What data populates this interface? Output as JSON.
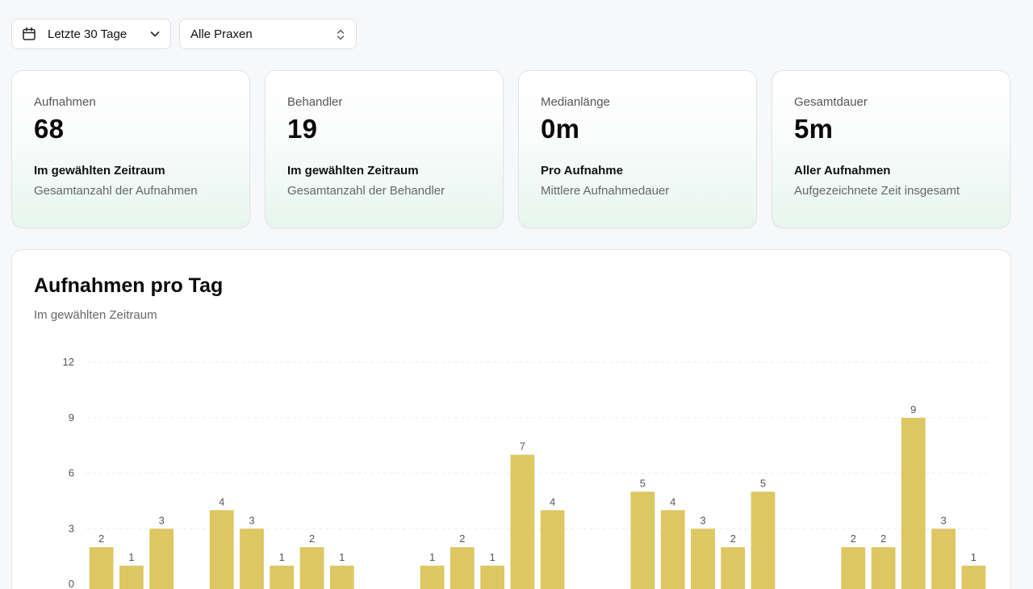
{
  "filters": {
    "range": {
      "label": "Letzte 30 Tage",
      "icon": "calendar-icon"
    },
    "praxis": {
      "label": "Alle Praxen",
      "icon": "chevron-up-down-icon"
    }
  },
  "cards": [
    {
      "title": "Aufnahmen",
      "value": "68",
      "subtitle": "Im gewählten Zeitraum",
      "description": "Gesamtanzahl der Aufnahmen"
    },
    {
      "title": "Behandler",
      "value": "19",
      "subtitle": "Im gewählten Zeitraum",
      "description": "Gesamtanzahl der Behandler"
    },
    {
      "title": "Medianlänge",
      "value": "0m",
      "subtitle": "Pro Aufnahme",
      "description": "Mittlere Aufnahmedauer"
    },
    {
      "title": "Gesamtdauer",
      "value": "5m",
      "subtitle": "Aller Aufnahmen",
      "description": "Aufgezeichnete Zeit insgesamt"
    }
  ],
  "chart_card": {
    "title": "Aufnahmen pro Tag",
    "subtitle": "Im gewählten Zeitraum"
  },
  "chart_data": {
    "type": "bar",
    "title": "Aufnahmen pro Tag",
    "subtitle": "Im gewählten Zeitraum",
    "xlabel": "",
    "ylabel": "",
    "ylim": [
      0,
      12
    ],
    "yticks": [
      0,
      3,
      6,
      9,
      12
    ],
    "grid": true,
    "bar_color": "#ddc762",
    "values": [
      2,
      1,
      3,
      0,
      4,
      3,
      1,
      2,
      1,
      0,
      0,
      1,
      2,
      1,
      7,
      4,
      0,
      0,
      5,
      4,
      3,
      2,
      5,
      0,
      0,
      2,
      2,
      9,
      3,
      1
    ]
  }
}
